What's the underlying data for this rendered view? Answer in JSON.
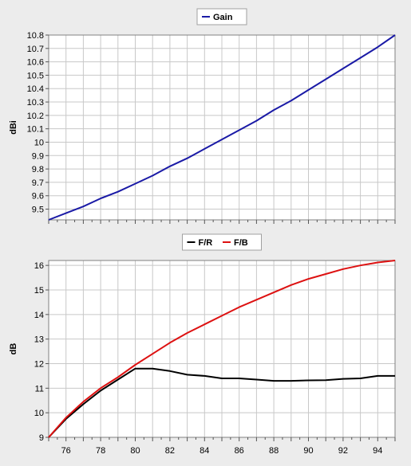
{
  "chart_data": [
    {
      "type": "line",
      "title": "",
      "xlabel": "",
      "ylabel": "dBi",
      "xlim": [
        75,
        95
      ],
      "ylim": [
        9.42,
        10.8
      ],
      "x_ticks": [],
      "y_ticks": [
        9.5,
        9.6,
        9.7,
        9.8,
        9.9,
        10,
        10.1,
        10.2,
        10.3,
        10.4,
        10.5,
        10.6,
        10.7,
        10.8
      ],
      "grid": true,
      "legend_position": "top-center",
      "series": [
        {
          "name": "Gain",
          "color": "#1a1aa6",
          "x": [
            75,
            76,
            77,
            78,
            79,
            80,
            81,
            82,
            83,
            84,
            85,
            86,
            87,
            88,
            89,
            90,
            91,
            92,
            93,
            94,
            95
          ],
          "y": [
            9.42,
            9.47,
            9.52,
            9.58,
            9.63,
            9.69,
            9.75,
            9.82,
            9.88,
            9.95,
            10.02,
            10.09,
            10.16,
            10.24,
            10.31,
            10.39,
            10.47,
            10.55,
            10.63,
            10.71,
            10.8
          ]
        }
      ]
    },
    {
      "type": "line",
      "title": "",
      "xlabel": "",
      "ylabel": "dB",
      "xlim": [
        75,
        95
      ],
      "ylim": [
        9,
        16.2
      ],
      "x_ticks": [
        76,
        78,
        80,
        82,
        84,
        86,
        88,
        90,
        92,
        94
      ],
      "y_ticks": [
        9,
        10,
        11,
        12,
        13,
        14,
        15,
        16
      ],
      "grid": true,
      "legend_position": "top-center",
      "series": [
        {
          "name": "F/R",
          "color": "#000000",
          "x": [
            75,
            76,
            77,
            78,
            79,
            80,
            81,
            82,
            83,
            84,
            85,
            86,
            87,
            88,
            89,
            90,
            91,
            92,
            93,
            94,
            95
          ],
          "y": [
            9.0,
            9.75,
            10.35,
            10.9,
            11.35,
            11.8,
            11.8,
            11.7,
            11.55,
            11.5,
            11.4,
            11.4,
            11.35,
            11.3,
            11.3,
            11.32,
            11.33,
            11.38,
            11.4,
            11.5,
            11.5
          ]
        },
        {
          "name": "F/B",
          "color": "#dd1111",
          "x": [
            75,
            76,
            77,
            78,
            79,
            80,
            81,
            82,
            83,
            84,
            85,
            86,
            87,
            88,
            89,
            90,
            91,
            92,
            93,
            94,
            95
          ],
          "y": [
            9.0,
            9.8,
            10.45,
            11.0,
            11.45,
            11.95,
            12.4,
            12.85,
            13.25,
            13.6,
            13.95,
            14.3,
            14.6,
            14.9,
            15.2,
            15.45,
            15.65,
            15.85,
            16.0,
            16.12,
            16.2
          ]
        }
      ]
    }
  ]
}
